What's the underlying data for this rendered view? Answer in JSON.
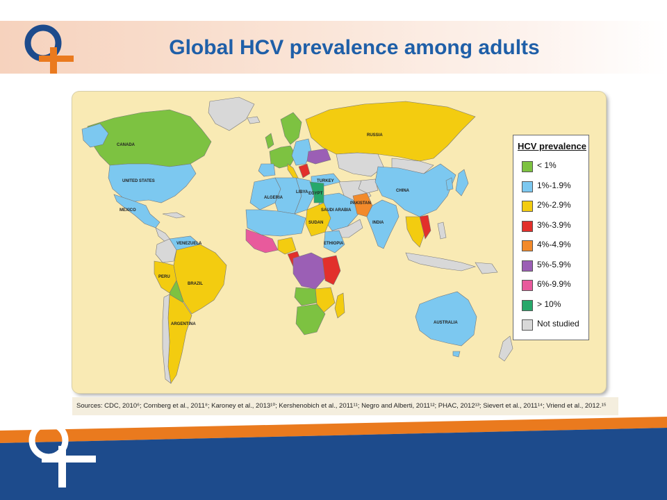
{
  "slide": {
    "title": "Global HCV prevalence among adults",
    "sources": "Sources: CDC, 2010⁶; Cornberg et al., 2011⁸; Karoney et al., 2013¹⁰; Kershenobich et al., 2011¹¹; Negro and Alberti, 2011¹²; PHAC, 2012¹³; Sievert et al., 2011¹⁴; Vriend et al., 2012.¹⁵"
  },
  "colors": {
    "title": "#1f5fa8",
    "brand_orange": "#ea7a1e",
    "brand_blue": "#1d4b8c",
    "ocean": "#f9eab4"
  },
  "legend": {
    "title": "HCV prevalence",
    "items": [
      {
        "label": "< 1%",
        "color": "#7dc241"
      },
      {
        "label": "1%-1.9%",
        "color": "#7cc8f0"
      },
      {
        "label": "2%-2.9%",
        "color": "#f3cc10"
      },
      {
        "label": "3%-3.9%",
        "color": "#e2302b"
      },
      {
        "label": "4%-4.9%",
        "color": "#f28a2b"
      },
      {
        "label": "5%-5.9%",
        "color": "#9b5fb5"
      },
      {
        "label": "6%-9.9%",
        "color": "#e85a9c"
      },
      {
        "label": "> 10%",
        "color": "#27a86a"
      },
      {
        "label": "Not studied",
        "color": "#d8d8d8"
      }
    ]
  },
  "map": {
    "labels": {
      "canada": "CANADA",
      "united_states": "UNITED STATES",
      "mexico": "MEXICO",
      "venezuela": "VENEZUELA",
      "brazil": "BRAZIL",
      "peru": "PERU",
      "argentina": "ARGENTINA",
      "russia": "RUSSIA",
      "china": "CHINA",
      "india": "INDIA",
      "pakistan": "PAKISTAN",
      "turkey": "TURKEY",
      "saudi_arabia": "SAUDI ARABIA",
      "egypt": "EGYPT",
      "libya": "LIBYA",
      "algeria": "ALGERIA",
      "sudan": "SUDAN",
      "ethiopia": "ETHIOPIA",
      "australia": "AUSTRALIA"
    }
  }
}
